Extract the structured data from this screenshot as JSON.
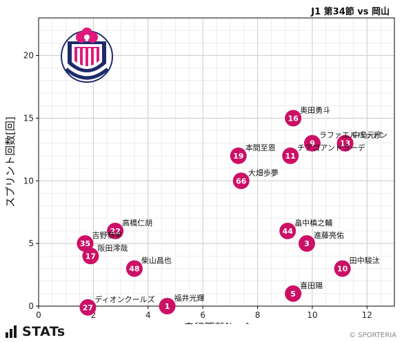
{
  "header": {
    "title": "J1 第34節 vs 岡山"
  },
  "footer": {
    "brand": "STATs",
    "credit": "© SPORTERIA"
  },
  "colors": {
    "marker": "#cc1066",
    "grid": "#cccccc",
    "axis": "#000000",
    "emblem_pink": "#e0197d",
    "emblem_navy": "#1d2a6b"
  },
  "chart_data": {
    "type": "scatter",
    "xlabel": "走行距離[km]",
    "ylabel": "スプリント回数[回]",
    "xlim": [
      0,
      13
    ],
    "ylim": [
      0,
      23
    ],
    "xticks": [
      0,
      2,
      4,
      6,
      8,
      10,
      12
    ],
    "yticks": [
      0,
      5,
      10,
      15,
      20
    ],
    "grid": true,
    "points": [
      {
        "num": "16",
        "name": "奥田勇斗",
        "x": 9.3,
        "y": 15
      },
      {
        "num": "9",
        "name": "ラファエルハットン",
        "x": 10.0,
        "y": 13
      },
      {
        "num": "13",
        "name": "中島元彦",
        "x": 11.2,
        "y": 13
      },
      {
        "num": "19",
        "name": "本間至恩",
        "x": 7.3,
        "y": 12
      },
      {
        "num": "11",
        "name": "チアゴアンドラーデ",
        "x": 9.2,
        "y": 12
      },
      {
        "num": "66",
        "name": "大畑歩夢",
        "x": 7.4,
        "y": 10
      },
      {
        "num": "44",
        "name": "畠中槙之輔",
        "x": 9.1,
        "y": 6
      },
      {
        "num": "3",
        "name": "進藤亮佑",
        "x": 9.8,
        "y": 5
      },
      {
        "num": "10",
        "name": "田中駿汰",
        "x": 11.1,
        "y": 3
      },
      {
        "num": "5",
        "name": "喜田陽",
        "x": 9.3,
        "y": 1
      },
      {
        "num": "22",
        "name": "高橋仁胡",
        "x": 2.8,
        "y": 6
      },
      {
        "num": "35",
        "name": "吉野恭平",
        "x": 1.7,
        "y": 5
      },
      {
        "num": "17",
        "name": "阪田澪哉",
        "x": 1.9,
        "y": 4
      },
      {
        "num": "48",
        "name": "柴山昌也",
        "x": 3.5,
        "y": 3
      },
      {
        "num": "1",
        "name": "福井光輝",
        "x": 4.7,
        "y": 0
      },
      {
        "num": "27",
        "name": "ディオンクールズ",
        "x": 1.8,
        "y": -0.1
      }
    ]
  }
}
